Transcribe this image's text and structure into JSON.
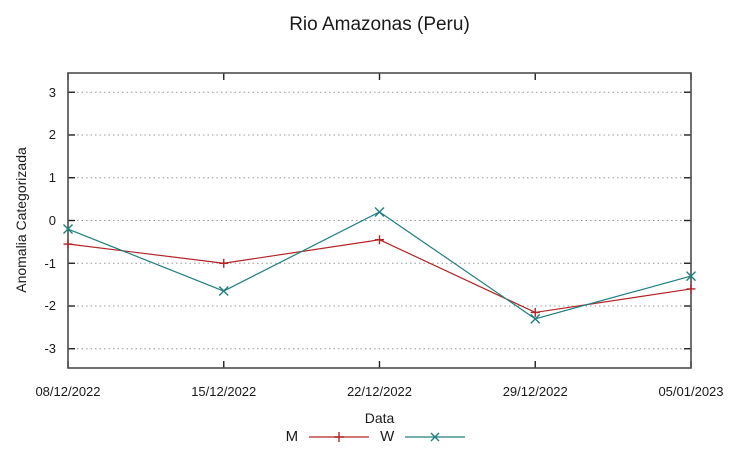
{
  "chart_data": {
    "type": "line",
    "title": "Rio Amazonas (Peru)",
    "xlabel": "Data",
    "ylabel": "Anomalia Categorizada",
    "categories": [
      "08/12/2022",
      "15/12/2022",
      "22/12/2022",
      "29/12/2022",
      "05/01/2023"
    ],
    "series": [
      {
        "name": "M",
        "marker": "plus",
        "color": "#b22424",
        "values": [
          -0.55,
          -1.0,
          -0.45,
          -2.15,
          -1.6
        ]
      },
      {
        "name": "W",
        "marker": "cross",
        "color": "#1f7f7f",
        "values": [
          -0.2,
          -1.65,
          0.2,
          -2.3,
          -1.3
        ]
      }
    ],
    "ytick_labels": [
      "3",
      "2",
      "1",
      "0",
      "-1",
      "-2",
      "-3"
    ],
    "yticks": [
      3,
      2,
      1,
      0,
      -1,
      -2,
      -3
    ],
    "ylim": [
      -3.45,
      3.45
    ],
    "grid": "horizontal-dotted",
    "grid_color": "#9a9a9a",
    "border_color": "#4d4d4d",
    "tick_color": "#222222",
    "legend_position": "below-center"
  }
}
